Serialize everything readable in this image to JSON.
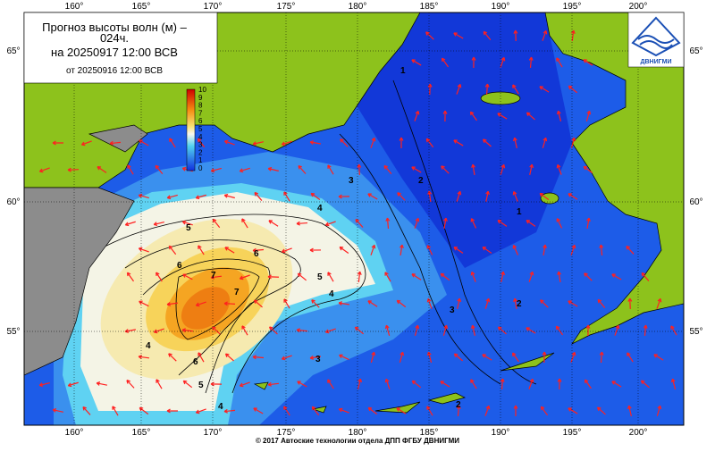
{
  "header": {
    "title_line1": "Прогноз высоты волн (м) –",
    "title_line2": "024ч.",
    "title_line3": "на 20250917 12:00 ВСВ",
    "subtitle": "от 20250916 12:00 ВСВ",
    "logo": "ДВНИГМИ"
  },
  "map": {
    "lon_labels": [
      "160°",
      "165°",
      "170°",
      "175°",
      "180°",
      "185°",
      "190°",
      "195°",
      "200°"
    ],
    "lat_labels": [
      "65°",
      "60°",
      "55°"
    ],
    "contour_labels": [
      "1",
      "2",
      "3",
      "4",
      "5",
      "6",
      "7"
    ]
  },
  "colorbar": {
    "ticks": [
      "10",
      "9",
      "8",
      "7",
      "6",
      "5",
      "4",
      "3",
      "2",
      "1",
      "0"
    ]
  },
  "footer": "© 2017 Автоские технологии отдела ДПП ФГБУ ДВНИГМИ"
}
